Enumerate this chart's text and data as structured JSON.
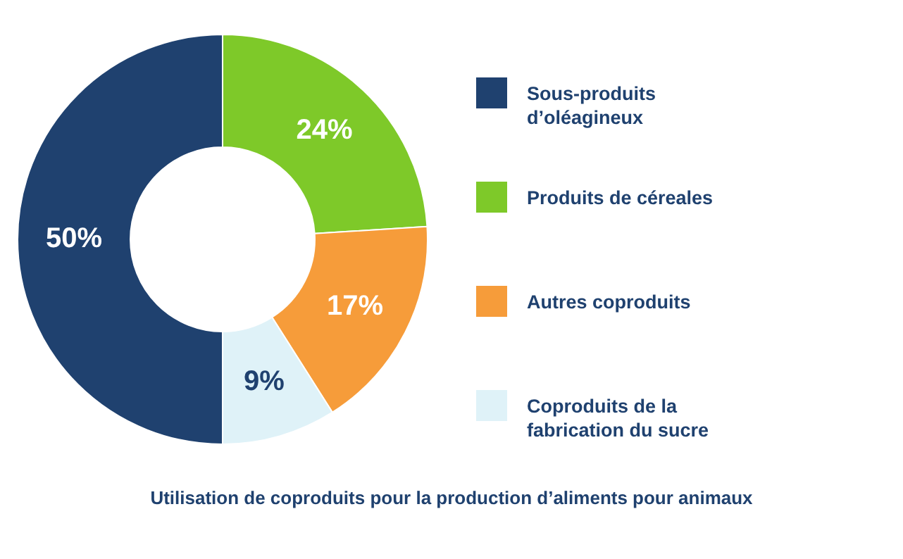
{
  "chart_data": {
    "type": "donut",
    "title": "Utilisation de coproduits pour la production d’aliments pour animaux",
    "categories": [
      "Sous-produits d’oléagineux",
      "Produits de céreales",
      "Autres coproduits",
      "Coproduits de la fabrication du sucre"
    ],
    "values": [
      50,
      24,
      17,
      9
    ],
    "colors": [
      "#1f416f",
      "#7ec929",
      "#f69c3a",
      "#dff2f8"
    ],
    "value_labels": [
      "50%",
      "24%",
      "17%",
      "9%"
    ],
    "legend": "right"
  }
}
